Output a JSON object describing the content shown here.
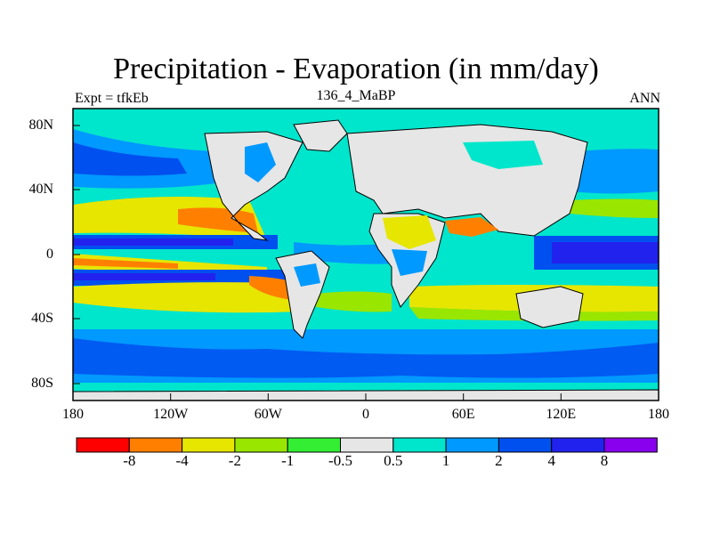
{
  "title": "Precipitation - Evaporation (in mm/day)",
  "subtitle_left": "Expt = tfkEb",
  "subtitle_center": "136_4_MaBP",
  "subtitle_right": "ANN",
  "lat_ticks": [
    "80N",
    "40N",
    "0",
    "40S",
    "80S"
  ],
  "lon_ticks": [
    "180",
    "120W",
    "60W",
    "0",
    "60E",
    "120E",
    "180"
  ],
  "colorbar": {
    "colors": [
      "#ff0000",
      "#ff8000",
      "#e6e600",
      "#99e600",
      "#33ee33",
      "#e6e6e6",
      "#00e6cc",
      "#0099ff",
      "#0050f0",
      "#2222ee",
      "#8800ee"
    ],
    "labels": [
      "-8",
      "-4",
      "-2",
      "-1",
      "-0.5",
      "0.5",
      "1",
      "2",
      "4",
      "8"
    ]
  },
  "map_colors": {
    "ocean_base": "#00e6cc",
    "land": "#e6e6e6",
    "coast": "#000000"
  }
}
